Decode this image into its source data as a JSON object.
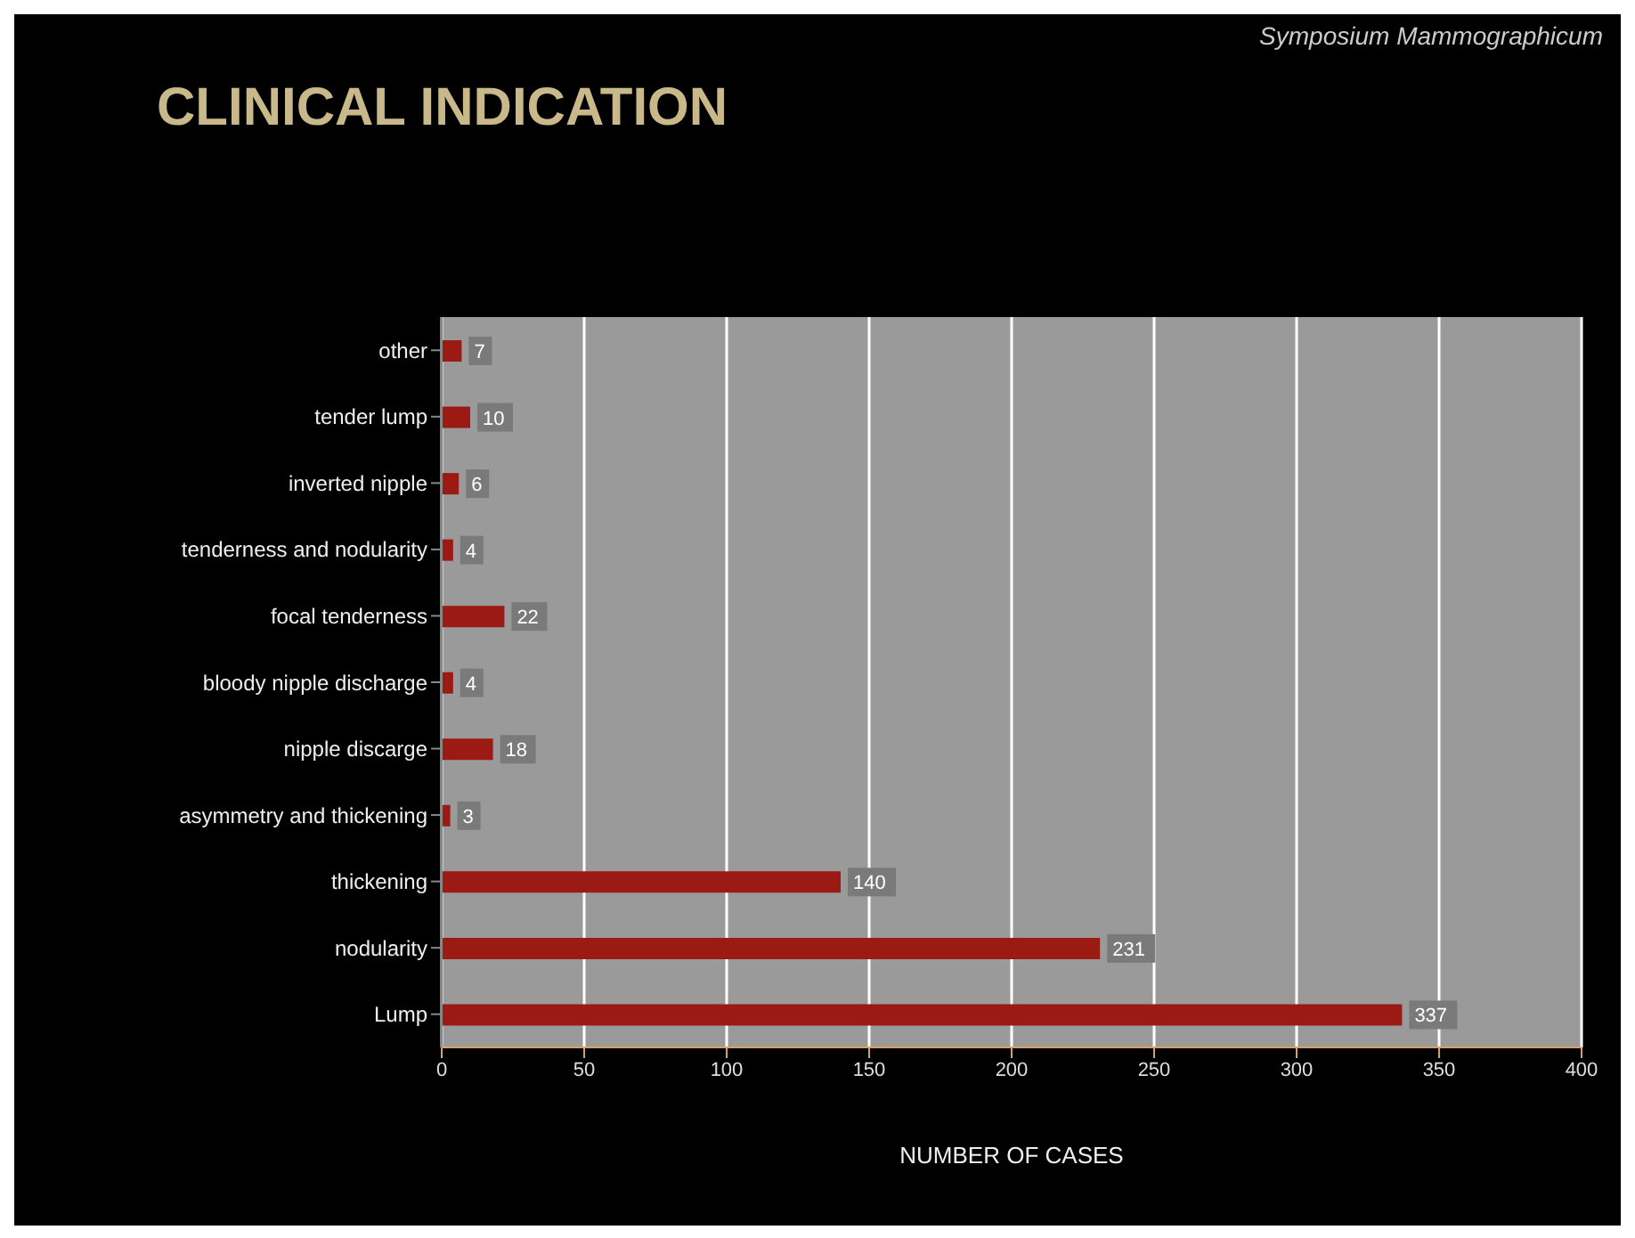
{
  "chart_data": {
    "type": "bar",
    "orientation": "horizontal",
    "title": "CLINICAL INDICATION",
    "xlabel": "NUMBER OF CASES",
    "annotations": [
      "Symposium Mammographicum"
    ],
    "categories": [
      "other",
      "tender lump",
      "inverted nipple",
      "tenderness and nodularity",
      "focal tenderness",
      "bloody nipple discharge",
      "nipple discarge",
      "asymmetry and thickening",
      "thickening",
      "nodularity",
      "Lump"
    ],
    "values": [
      7,
      10,
      6,
      4,
      22,
      4,
      18,
      3,
      140,
      231,
      337
    ],
    "color": "#9b1b14",
    "xlim": [
      0,
      400
    ],
    "xticks": [
      0,
      50,
      100,
      150,
      200,
      250,
      300,
      350,
      400
    ],
    "grid": "x",
    "data_labels": true
  }
}
